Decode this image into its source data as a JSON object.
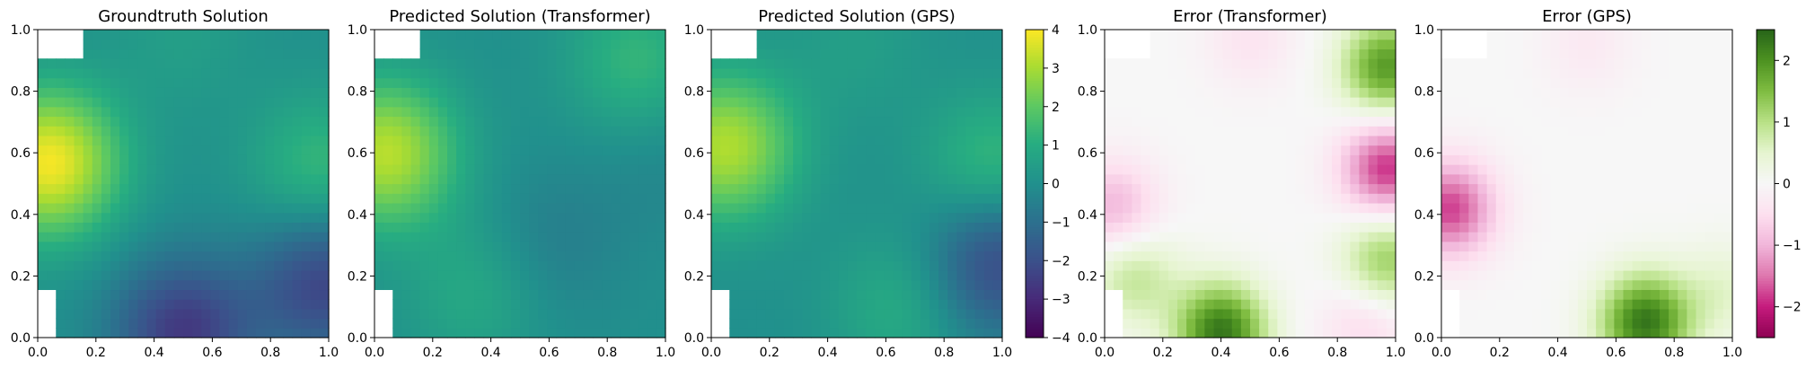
{
  "chart_data": [
    {
      "type": "heatmap",
      "title": "Groundtruth Solution",
      "colormap": "viridis",
      "xlim": [
        0,
        1
      ],
      "ylim": [
        0,
        1
      ],
      "xticks": [
        "0.0",
        "0.2",
        "0.4",
        "0.6",
        "0.8",
        "1.0"
      ],
      "yticks": [
        "0.0",
        "0.2",
        "0.4",
        "0.6",
        "0.8",
        "1.0"
      ],
      "grid": false,
      "field_features": [
        {
          "x": 0.04,
          "y": 0.57,
          "value": 3.9
        },
        {
          "x": 0.5,
          "y": 0.02,
          "value": -2.6
        },
        {
          "x": 0.98,
          "y": 0.18,
          "value": -2.3
        },
        {
          "x": 0.97,
          "y": 0.55,
          "value": 1.4
        },
        {
          "x": 0.5,
          "y": 0.98,
          "value": 0.5
        }
      ]
    },
    {
      "type": "heatmap",
      "title": "Predicted Solution (Transformer)",
      "colormap": "viridis",
      "xlim": [
        0,
        1
      ],
      "ylim": [
        0,
        1
      ],
      "xticks": [
        "0.0",
        "0.2",
        "0.4",
        "0.6",
        "0.8",
        "1.0"
      ],
      "yticks": [
        "0.0",
        "0.2",
        "0.4",
        "0.6",
        "0.8",
        "1.0"
      ],
      "grid": false,
      "field_features": [
        {
          "x": 0.04,
          "y": 0.6,
          "value": 3.2
        },
        {
          "x": 0.35,
          "y": 0.15,
          "value": 0.9
        },
        {
          "x": 0.9,
          "y": 0.9,
          "value": 1.3
        },
        {
          "x": 0.97,
          "y": 0.55,
          "value": -0.3
        },
        {
          "x": 0.6,
          "y": 0.3,
          "value": -0.6
        }
      ]
    },
    {
      "type": "heatmap",
      "title": "Predicted Solution (GPS)",
      "colormap": "viridis",
      "xlim": [
        0,
        1
      ],
      "ylim": [
        0,
        1
      ],
      "xticks": [
        "0.0",
        "0.2",
        "0.4",
        "0.6",
        "0.8",
        "1.0"
      ],
      "yticks": [
        "0.0",
        "0.2",
        "0.4",
        "0.6",
        "0.8",
        "1.0"
      ],
      "grid": false,
      "field_features": [
        {
          "x": 0.05,
          "y": 0.62,
          "value": 3.1
        },
        {
          "x": 0.65,
          "y": 0.1,
          "value": 1.0
        },
        {
          "x": 0.98,
          "y": 0.25,
          "value": -2.3
        },
        {
          "x": 0.97,
          "y": 0.55,
          "value": 1.5
        },
        {
          "x": 0.5,
          "y": 0.95,
          "value": 0.5
        }
      ]
    },
    {
      "type": "heatmap",
      "title": "Error (Transformer)",
      "colormap": "PiYG",
      "xlim": [
        0,
        1
      ],
      "ylim": [
        0,
        1
      ],
      "xticks": [
        "0.0",
        "0.2",
        "0.4",
        "0.6",
        "0.8",
        "1.0"
      ],
      "yticks": [
        "0.0",
        "0.2",
        "0.4",
        "0.6",
        "0.8",
        "1.0"
      ],
      "grid": false,
      "field_features": [
        {
          "x": 0.4,
          "y": 0.02,
          "value": 2.3
        },
        {
          "x": 0.1,
          "y": 0.2,
          "value": 0.9
        },
        {
          "x": 0.97,
          "y": 0.88,
          "value": 1.9
        },
        {
          "x": 0.97,
          "y": 0.55,
          "value": -1.9
        },
        {
          "x": 0.97,
          "y": 0.25,
          "value": 1.3
        },
        {
          "x": 0.03,
          "y": 0.42,
          "value": -1.0
        },
        {
          "x": 0.9,
          "y": 0.05,
          "value": -0.6
        },
        {
          "x": 0.5,
          "y": 0.97,
          "value": -0.4
        }
      ]
    },
    {
      "type": "heatmap",
      "title": "Error (GPS)",
      "colormap": "PiYG",
      "xlim": [
        0,
        1
      ],
      "ylim": [
        0,
        1
      ],
      "xticks": [
        "0.0",
        "0.2",
        "0.4",
        "0.6",
        "0.8",
        "1.0"
      ],
      "yticks": [
        "0.0",
        "0.2",
        "0.4",
        "0.6",
        "0.8",
        "1.0"
      ],
      "grid": false,
      "field_features": [
        {
          "x": 0.7,
          "y": 0.05,
          "value": 2.3
        },
        {
          "x": 0.03,
          "y": 0.42,
          "value": -1.8
        },
        {
          "x": 0.97,
          "y": 0.15,
          "value": 0.5
        },
        {
          "x": 0.5,
          "y": 0.95,
          "value": -0.3
        }
      ]
    }
  ],
  "masked_regions": [
    {
      "x": [
        0.0,
        0.16
      ],
      "y": [
        0.91,
        1.0
      ]
    },
    {
      "x": [
        0.0,
        0.06
      ],
      "y": [
        0.0,
        0.16
      ]
    }
  ],
  "colorbars": [
    {
      "colormap": "viridis",
      "range": [
        -4,
        4
      ],
      "ticks": [
        "4",
        "3",
        "2",
        "1",
        "0",
        "−1",
        "−2",
        "−3",
        "−4"
      ]
    },
    {
      "colormap": "PiYG",
      "range": [
        -2.5,
        2.5
      ],
      "ticks": [
        "2",
        "1",
        "0",
        "−1",
        "−2"
      ]
    }
  ]
}
